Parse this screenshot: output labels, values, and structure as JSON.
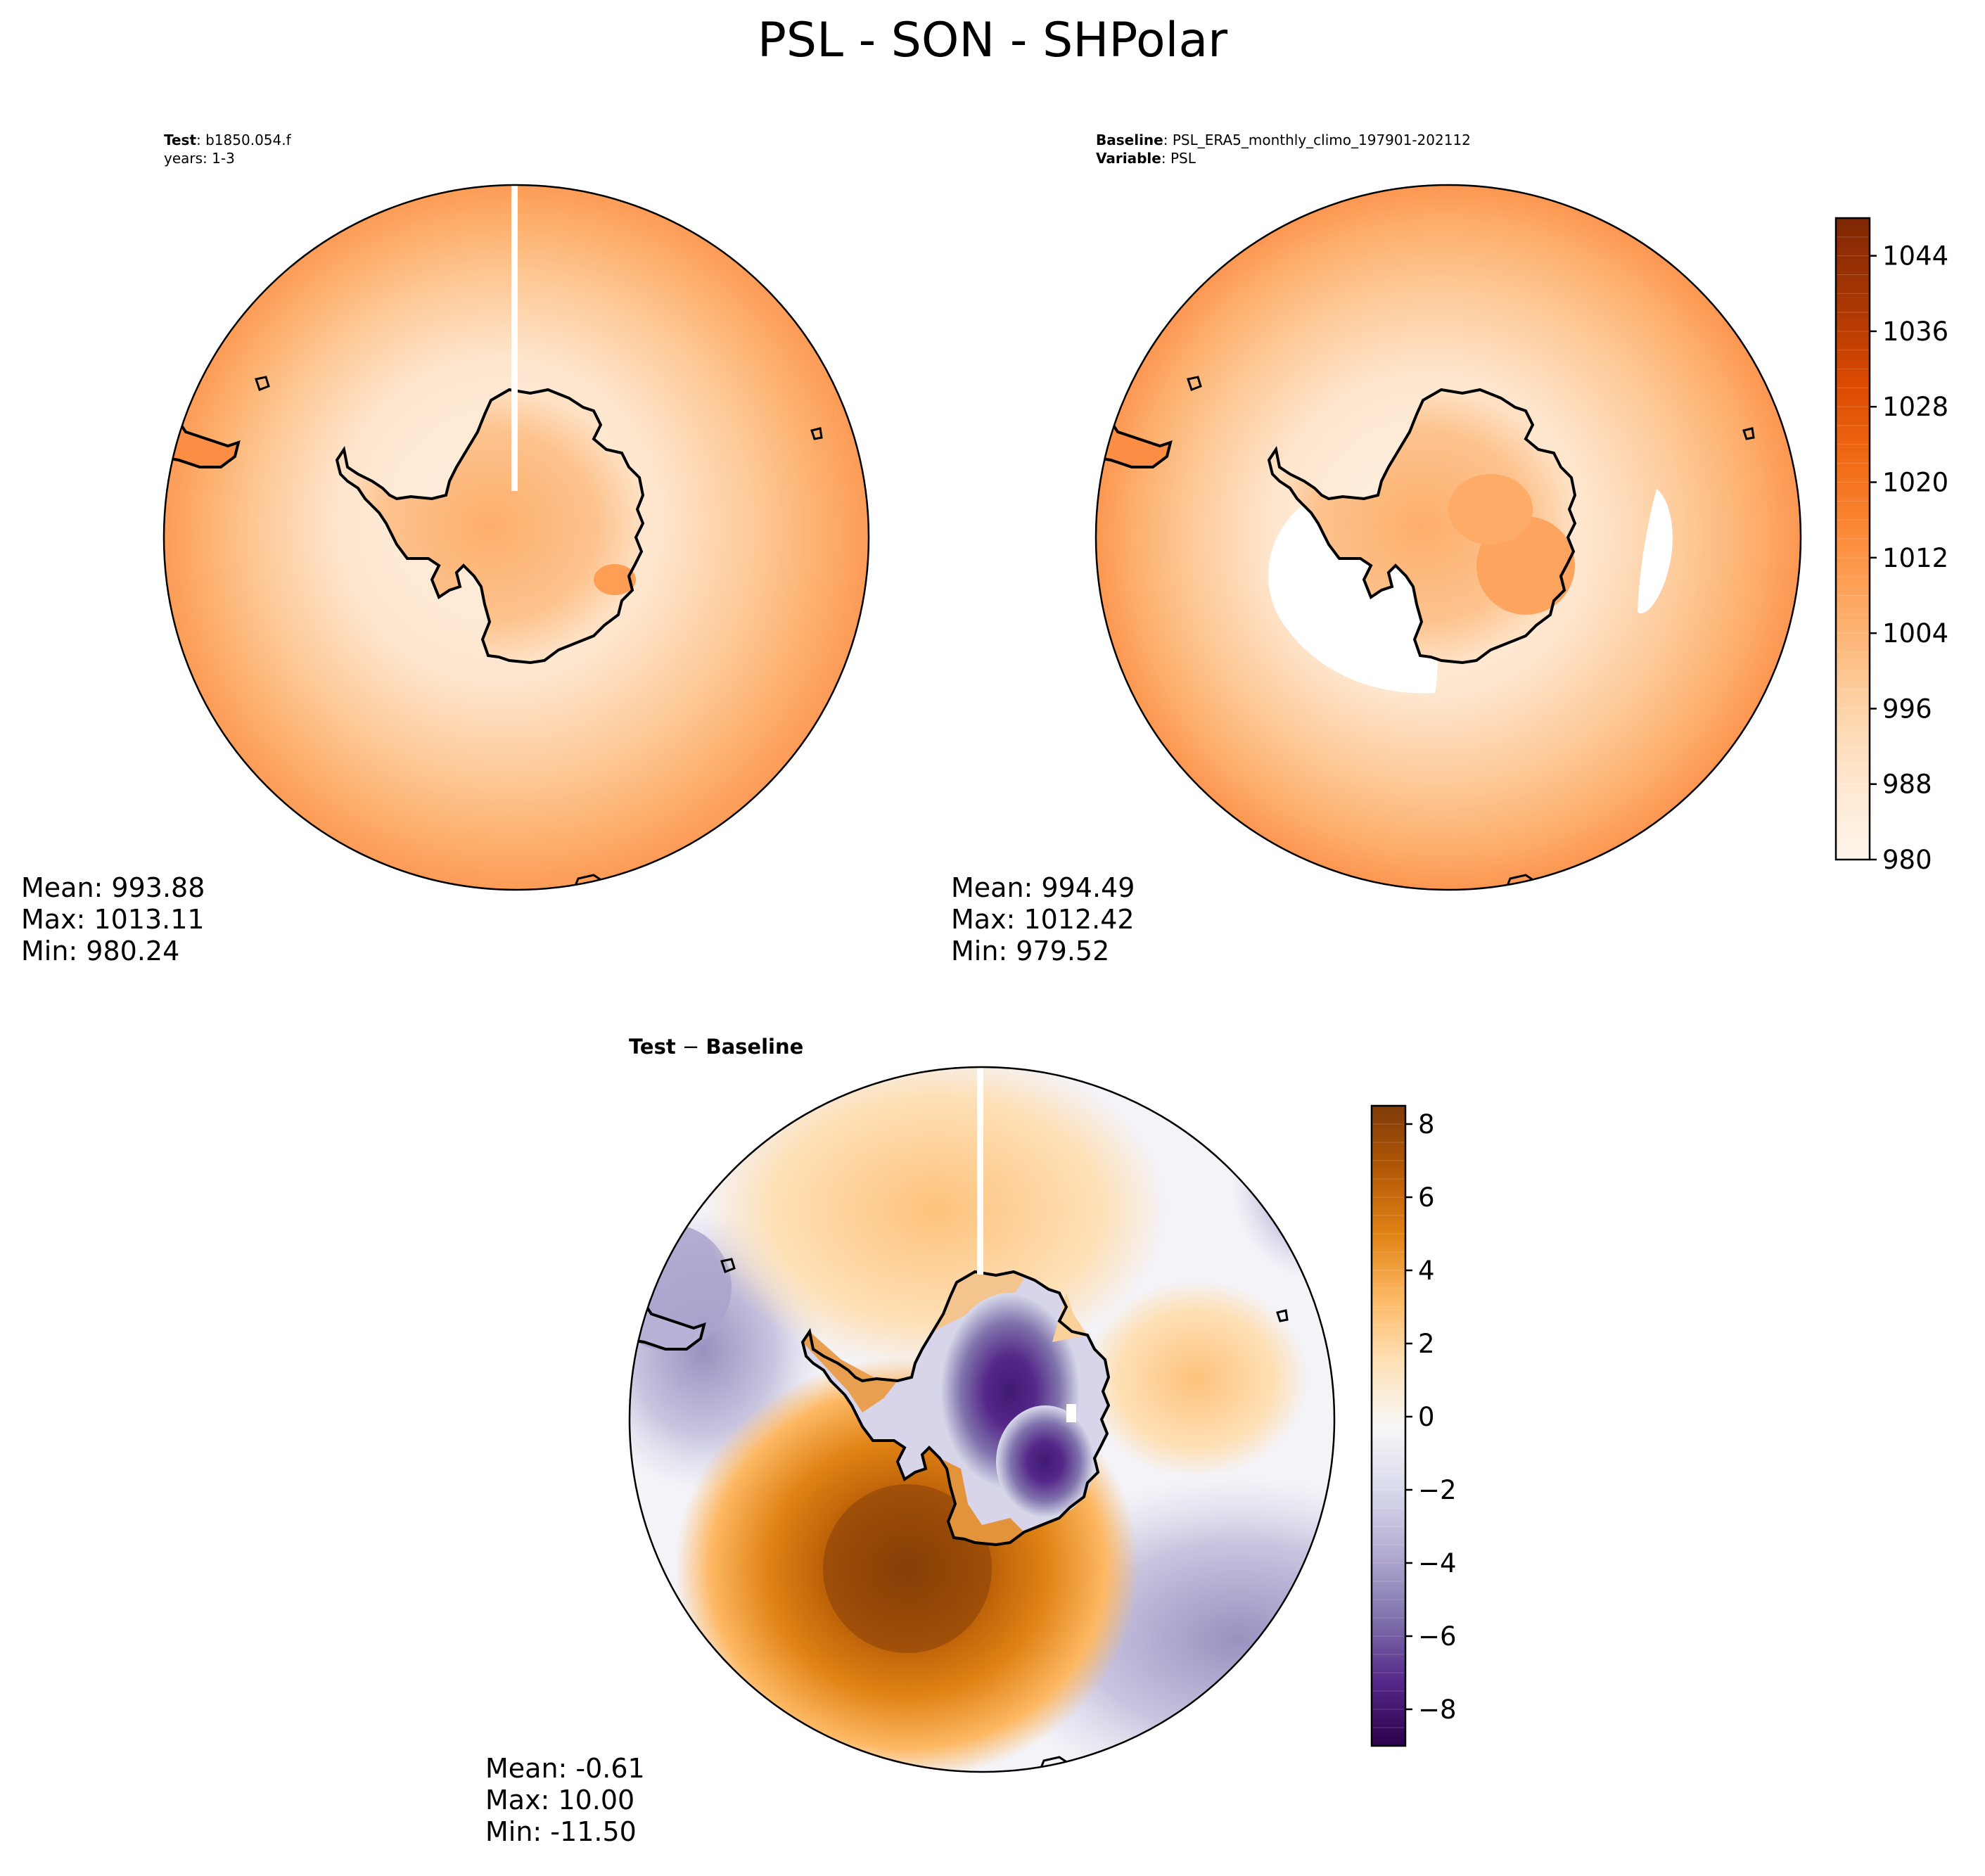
{
  "figure": {
    "title": "PSL - SON - SHPolar"
  },
  "chart_data": [
    {
      "type": "heatmap",
      "projection": "south-polar-stereographic",
      "panel": "test",
      "header": [
        {
          "bold": "Test",
          "text": ": b1850.054.f"
        },
        {
          "bold": "",
          "text": "years: 1-3"
        }
      ],
      "stats": {
        "mean": "Mean: 993.88",
        "max": "Max: 1013.11",
        "min": "Min: 980.24"
      },
      "colormap": "Oranges",
      "levels": [
        980,
        1048
      ],
      "colors": {
        "low": "#fff5eb",
        "mid": "#fdae6b",
        "high": "#f16913"
      }
    },
    {
      "type": "heatmap",
      "projection": "south-polar-stereographic",
      "panel": "baseline",
      "header": [
        {
          "bold": "Baseline",
          "text": ": PSL_ERA5_monthly_climo_197901-202112"
        },
        {
          "bold": "Variable",
          "text": ": PSL"
        }
      ],
      "stats": {
        "mean": "Mean: 994.49",
        "max": "Max: 1012.42",
        "min": "Min: 979.52"
      },
      "colormap": "Oranges",
      "colorbar": {
        "range": [
          980,
          1048
        ],
        "ticks": [
          980,
          988,
          996,
          1004,
          1012,
          1020,
          1028,
          1036,
          1044
        ],
        "tick_labels": [
          "980",
          "988",
          "996",
          "1004",
          "1012",
          "1020",
          "1028",
          "1036",
          "1044"
        ],
        "n_levels": 34
      }
    },
    {
      "type": "heatmap",
      "projection": "south-polar-stereographic",
      "panel": "difference",
      "header": [
        {
          "bold": "Test",
          "text": " − "
        },
        {
          "bold": "Baseline",
          "text": ""
        }
      ],
      "stats": {
        "mean": "Mean: -0.61",
        "max": "Max: 10.00",
        "min": "Min: -11.50"
      },
      "colormap": "PuOr_r",
      "colorbar": {
        "range": [
          -9,
          8.5
        ],
        "ticks": [
          -8,
          -6,
          -4,
          -2,
          0,
          2,
          4,
          6,
          8
        ],
        "tick_labels": [
          "−8",
          "−6",
          "−4",
          "−2",
          "0",
          "2",
          "4",
          "6",
          "8"
        ],
        "n_levels": 35
      }
    }
  ],
  "palettes": {
    "oranges": [
      "#fff5eb",
      "#fee6ce",
      "#fdd0a2",
      "#fdae6b",
      "#fd8d3c",
      "#f16913",
      "#d94801",
      "#a63603",
      "#7f2704"
    ],
    "puor_r": [
      "#2d004b",
      "#542788",
      "#8073ac",
      "#b2abd2",
      "#d8daeb",
      "#f7f7f7",
      "#fee0b6",
      "#fdb863",
      "#e08214",
      "#b35806",
      "#7f3b08"
    ]
  }
}
